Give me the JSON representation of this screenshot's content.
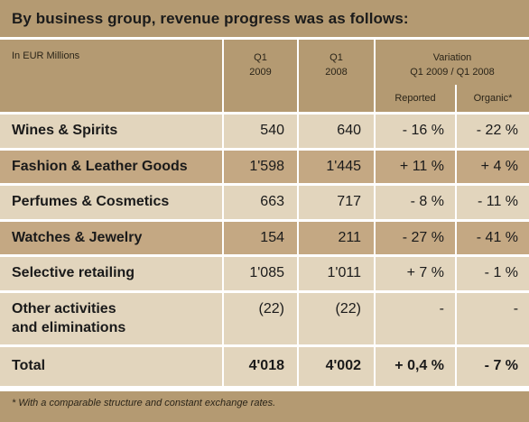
{
  "title": "By business group, revenue progress was as follows:",
  "header": {
    "unit_label": "In EUR Millions",
    "col_q1_2009": [
      "Q1",
      "2009"
    ],
    "col_q1_2008": [
      "Q1",
      "2008"
    ],
    "variation": [
      "Variation",
      "Q1 2009 / Q1 2008"
    ],
    "reported": "Reported",
    "organic": "Organic*"
  },
  "rows": [
    {
      "name": "Wines & Spirits",
      "q1_2009": "540",
      "q1_2008": "640",
      "reported": "- 16 %",
      "organic": "- 22 %"
    },
    {
      "name": "Fashion & Leather Goods",
      "q1_2009": "1'598",
      "q1_2008": "1'445",
      "reported": "+ 11 %",
      "organic": "+ 4 %"
    },
    {
      "name": "Perfumes & Cosmetics",
      "q1_2009": "663",
      "q1_2008": "717",
      "reported": "- 8 %",
      "organic": "- 11 %"
    },
    {
      "name": "Watches & Jewelry",
      "q1_2009": "154",
      "q1_2008": "211",
      "reported": "- 27 %",
      "organic": "- 41 %"
    },
    {
      "name": "Selective retailing",
      "q1_2009": "1'085",
      "q1_2008": "1'011",
      "reported": "+ 7 %",
      "organic": "- 1 %"
    },
    {
      "name_lines": [
        "Other activities",
        "and eliminations"
      ],
      "q1_2009": "(22)",
      "q1_2008": "(22)",
      "reported": "-",
      "organic": "-"
    }
  ],
  "total": {
    "name": "Total",
    "q1_2009": "4'018",
    "q1_2008": "4'002",
    "reported": "+ 0,4 %",
    "organic": "- 7 %"
  },
  "footnote": "* With a comparable structure and constant exchange rates.",
  "colors": {
    "header_bg": "#b49a72",
    "row_light": "#e2d5bd",
    "row_dark": "#c4a883",
    "divider": "#ffffff"
  }
}
